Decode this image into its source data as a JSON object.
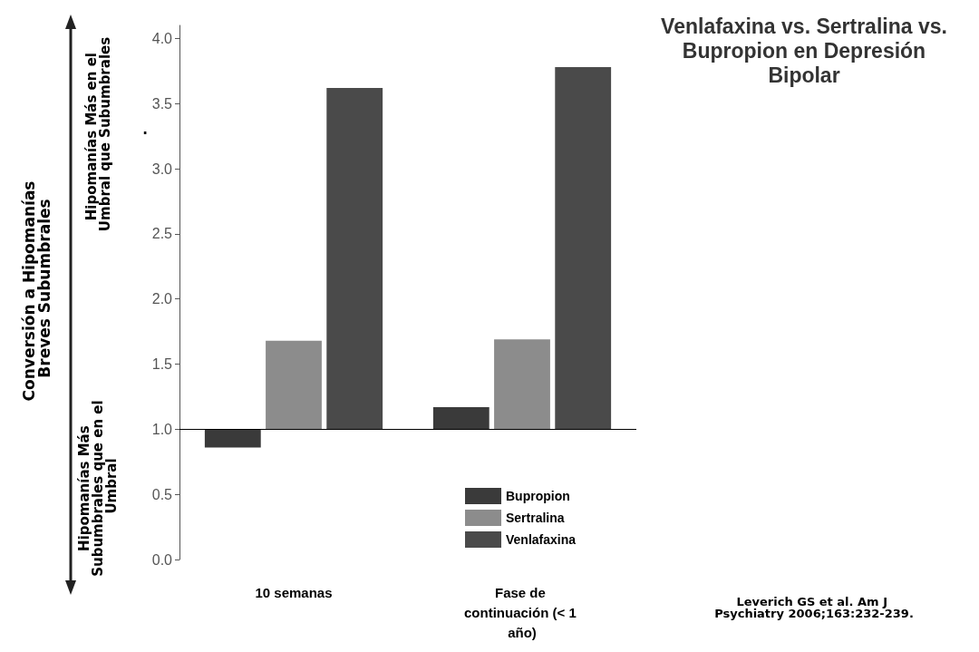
{
  "chart_data": {
    "type": "bar",
    "title": "Venlafaxina vs. Sertralina vs. Bupropion en Depresión Bipolar",
    "annotations": [
      "Conversión a Hipomanías Breves Subumbrales",
      "Hipomanías Más en el Umbral que Subumbrales",
      ".",
      "Hipomanías Más Subumbrales que en el Umbral",
      "Leverich GS et al. Am J Psychiatry 2006;163:232-239."
    ],
    "categories": [
      "10 semanas",
      "Fase de continuación (< 1 año)"
    ],
    "series": [
      {
        "name": "Bupropion",
        "color": "#3a3a3a",
        "base": [
          1,
          1
        ],
        "values": [
          -0.14,
          0.17
        ]
      },
      {
        "name": "Sertralina",
        "color": "#8c8c8c",
        "base": [
          1,
          1
        ],
        "values": [
          0.68,
          0.69
        ]
      },
      {
        "name": "Venlafaxina",
        "color": "#4a4a4a",
        "base": [
          1,
          1
        ],
        "values": [
          2.62,
          2.78
        ]
      }
    ],
    "ylim": [
      0,
      4.1
    ],
    "yticks": [
      {
        "value": 0,
        "label": "0.0"
      },
      {
        "value": 0.5,
        "label": "0.5"
      },
      {
        "value": 1,
        "label": "1.0"
      },
      {
        "value": 1.5,
        "label": "1.5"
      },
      {
        "value": 2,
        "label": "2.0"
      },
      {
        "value": 2.5,
        "label": "2.5"
      },
      {
        "value": 3,
        "label": "3.0"
      },
      {
        "value": 3.5,
        "label": "3.5"
      },
      {
        "value": 4,
        "label": "4.0"
      }
    ],
    "ref_lines": [
      {
        "axis": "y",
        "value": 1,
        "color": "#000000"
      }
    ],
    "grid": false,
    "legend": "bottom right"
  }
}
